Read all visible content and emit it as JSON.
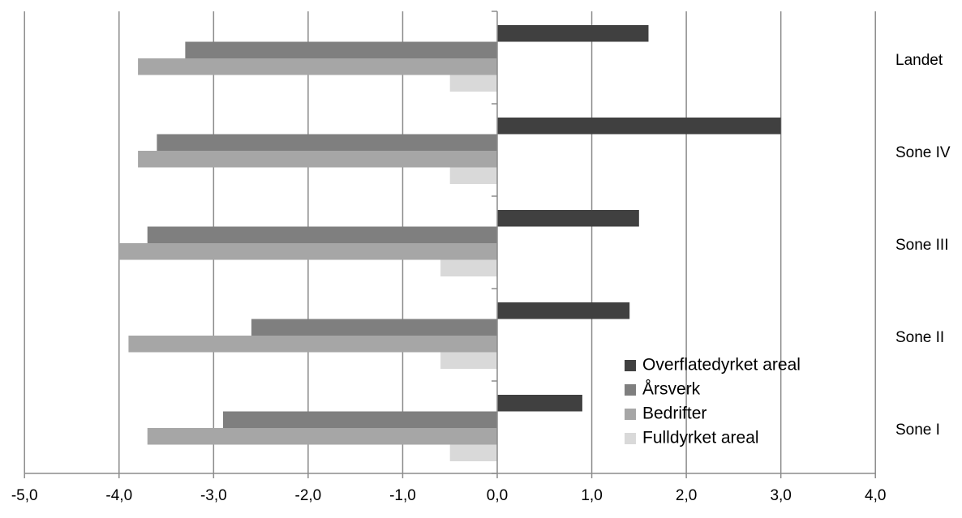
{
  "chart_data": {
    "type": "bar",
    "orientation": "horizontal",
    "categories": [
      "Sone I",
      "Sone II",
      "Sone III",
      "Sone IV",
      "Landet"
    ],
    "series": [
      {
        "name": "Overflatedyrket areal",
        "color": "#404040",
        "values": [
          0.9,
          1.4,
          1.5,
          3.0,
          1.6
        ]
      },
      {
        "name": "Årsverk",
        "color": "#7f7f7f",
        "values": [
          -2.9,
          -2.6,
          -3.7,
          -3.6,
          -3.3
        ]
      },
      {
        "name": "Bedrifter",
        "color": "#a6a6a6",
        "values": [
          -3.7,
          -3.9,
          -4.0,
          -3.8,
          -3.8
        ]
      },
      {
        "name": "Fulldyrket areal",
        "color": "#d9d9d9",
        "values": [
          -0.5,
          -0.6,
          -0.6,
          -0.5,
          -0.5
        ]
      }
    ],
    "xlim": [
      -5,
      4
    ],
    "xticks": [
      "-5,0",
      "-4,0",
      "-3,0",
      "-2,0",
      "-1,0",
      "0,0",
      "1,0",
      "2,0",
      "3,0",
      "4,0"
    ],
    "grid": true,
    "legend_position": "bottom-right",
    "gridline_color": "#8c8c8c"
  }
}
